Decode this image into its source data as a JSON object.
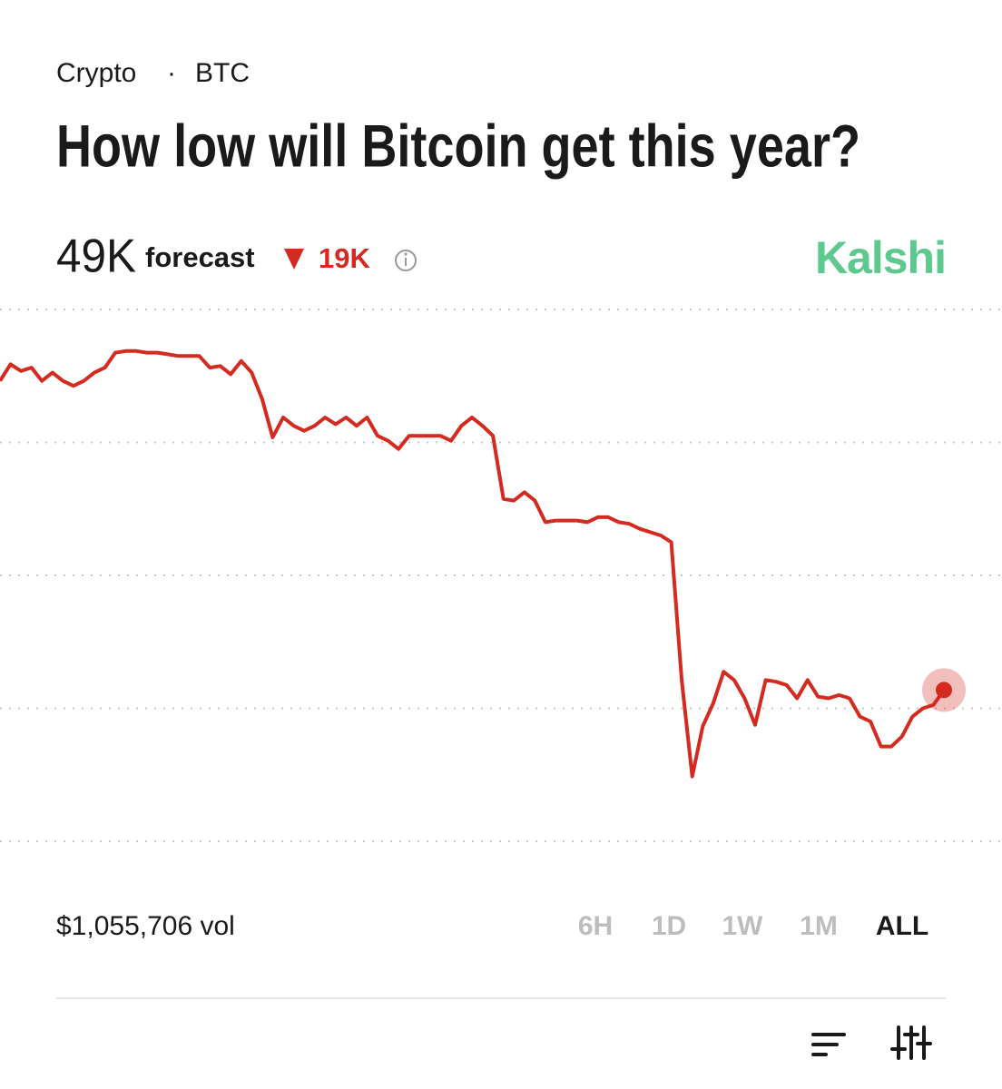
{
  "header": {
    "category": "Crypto",
    "separator": "·",
    "topic": "BTC"
  },
  "forecast": {
    "value": "49K",
    "label": "forecast",
    "change": "19K",
    "brand": "Kalshi"
  },
  "footer": {
    "volume": "$1,055,706 vol",
    "ranges": [
      "6H",
      "1D",
      "1W",
      "1M",
      "ALL"
    ],
    "active_range": "ALL"
  },
  "chart_data": {
    "type": "line",
    "title": "How low will Bitcoin get this year?",
    "color": "#d42a20",
    "values": [
      67.7,
      68.7,
      68.3,
      68.5,
      67.7,
      68.2,
      67.7,
      67.4,
      67.7,
      68.2,
      68.5,
      69.4,
      69.5,
      69.5,
      69.4,
      69.4,
      69.3,
      69.2,
      69.2,
      69.2,
      68.5,
      68.6,
      68.1,
      68.9,
      68.2,
      66.6,
      64.3,
      65.5,
      65.0,
      64.7,
      65.0,
      65.5,
      65.1,
      65.5,
      65.0,
      65.5,
      64.4,
      64.1,
      63.6,
      64.4,
      64.4,
      64.4,
      64.4,
      64.1,
      65.0,
      65.5,
      65.0,
      64.4,
      60.6,
      60.5,
      61.0,
      60.5,
      59.2,
      59.3,
      59.3,
      59.3,
      59.2,
      59.5,
      59.5,
      59.2,
      59.1,
      58.8,
      58.6,
      58.4,
      58.0,
      49.7,
      43.9,
      46.9,
      48.3,
      50.2,
      49.7,
      48.6,
      47.0,
      49.7,
      49.6,
      49.4,
      48.6,
      49.7,
      48.7,
      48.6,
      48.8,
      48.6,
      47.5,
      47.2,
      45.7,
      45.7,
      46.3,
      47.5,
      48.0,
      48.2,
      49.1
    ],
    "ylim": [
      40,
      72
    ],
    "yticks": [
      72,
      64,
      56,
      48,
      40
    ],
    "grid": true
  }
}
